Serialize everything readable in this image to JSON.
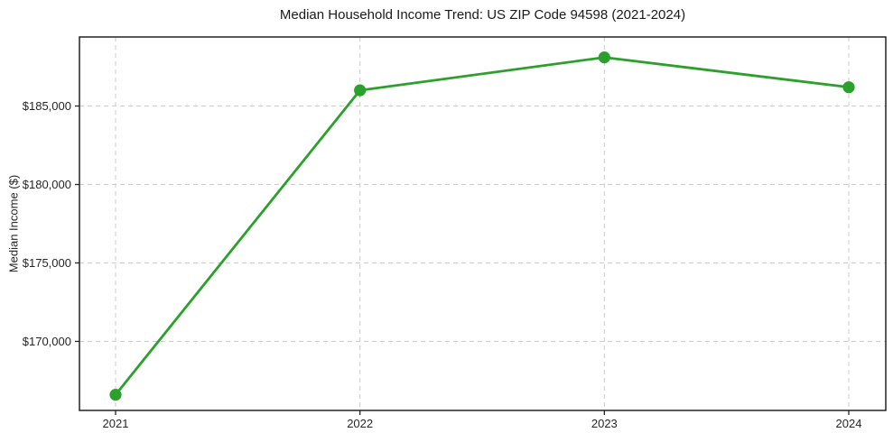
{
  "chart_data": {
    "type": "line",
    "title": "Median Household Income Trend: US ZIP Code 94598 (2021-2024)",
    "xlabel": "",
    "ylabel": "Median Income ($)",
    "categories": [
      "2021",
      "2022",
      "2023",
      "2024"
    ],
    "series": [
      {
        "name": "Median Income ($)",
        "values": [
          166600,
          186000,
          188100,
          186200
        ]
      }
    ],
    "ylim": [
      165600,
      189400
    ],
    "yticks": [
      {
        "value": 170000,
        "label": "$170,000"
      },
      {
        "value": 175000,
        "label": "$175,000"
      },
      {
        "value": 180000,
        "label": "$180,000"
      },
      {
        "value": 185000,
        "label": "$185,000"
      }
    ],
    "grid": "both-dashed",
    "legend": "none",
    "marker": "circle",
    "line_color": "#2ca02c",
    "grid_color": "#cccccc",
    "axis_color": "#222222",
    "text_color": "#262626"
  }
}
